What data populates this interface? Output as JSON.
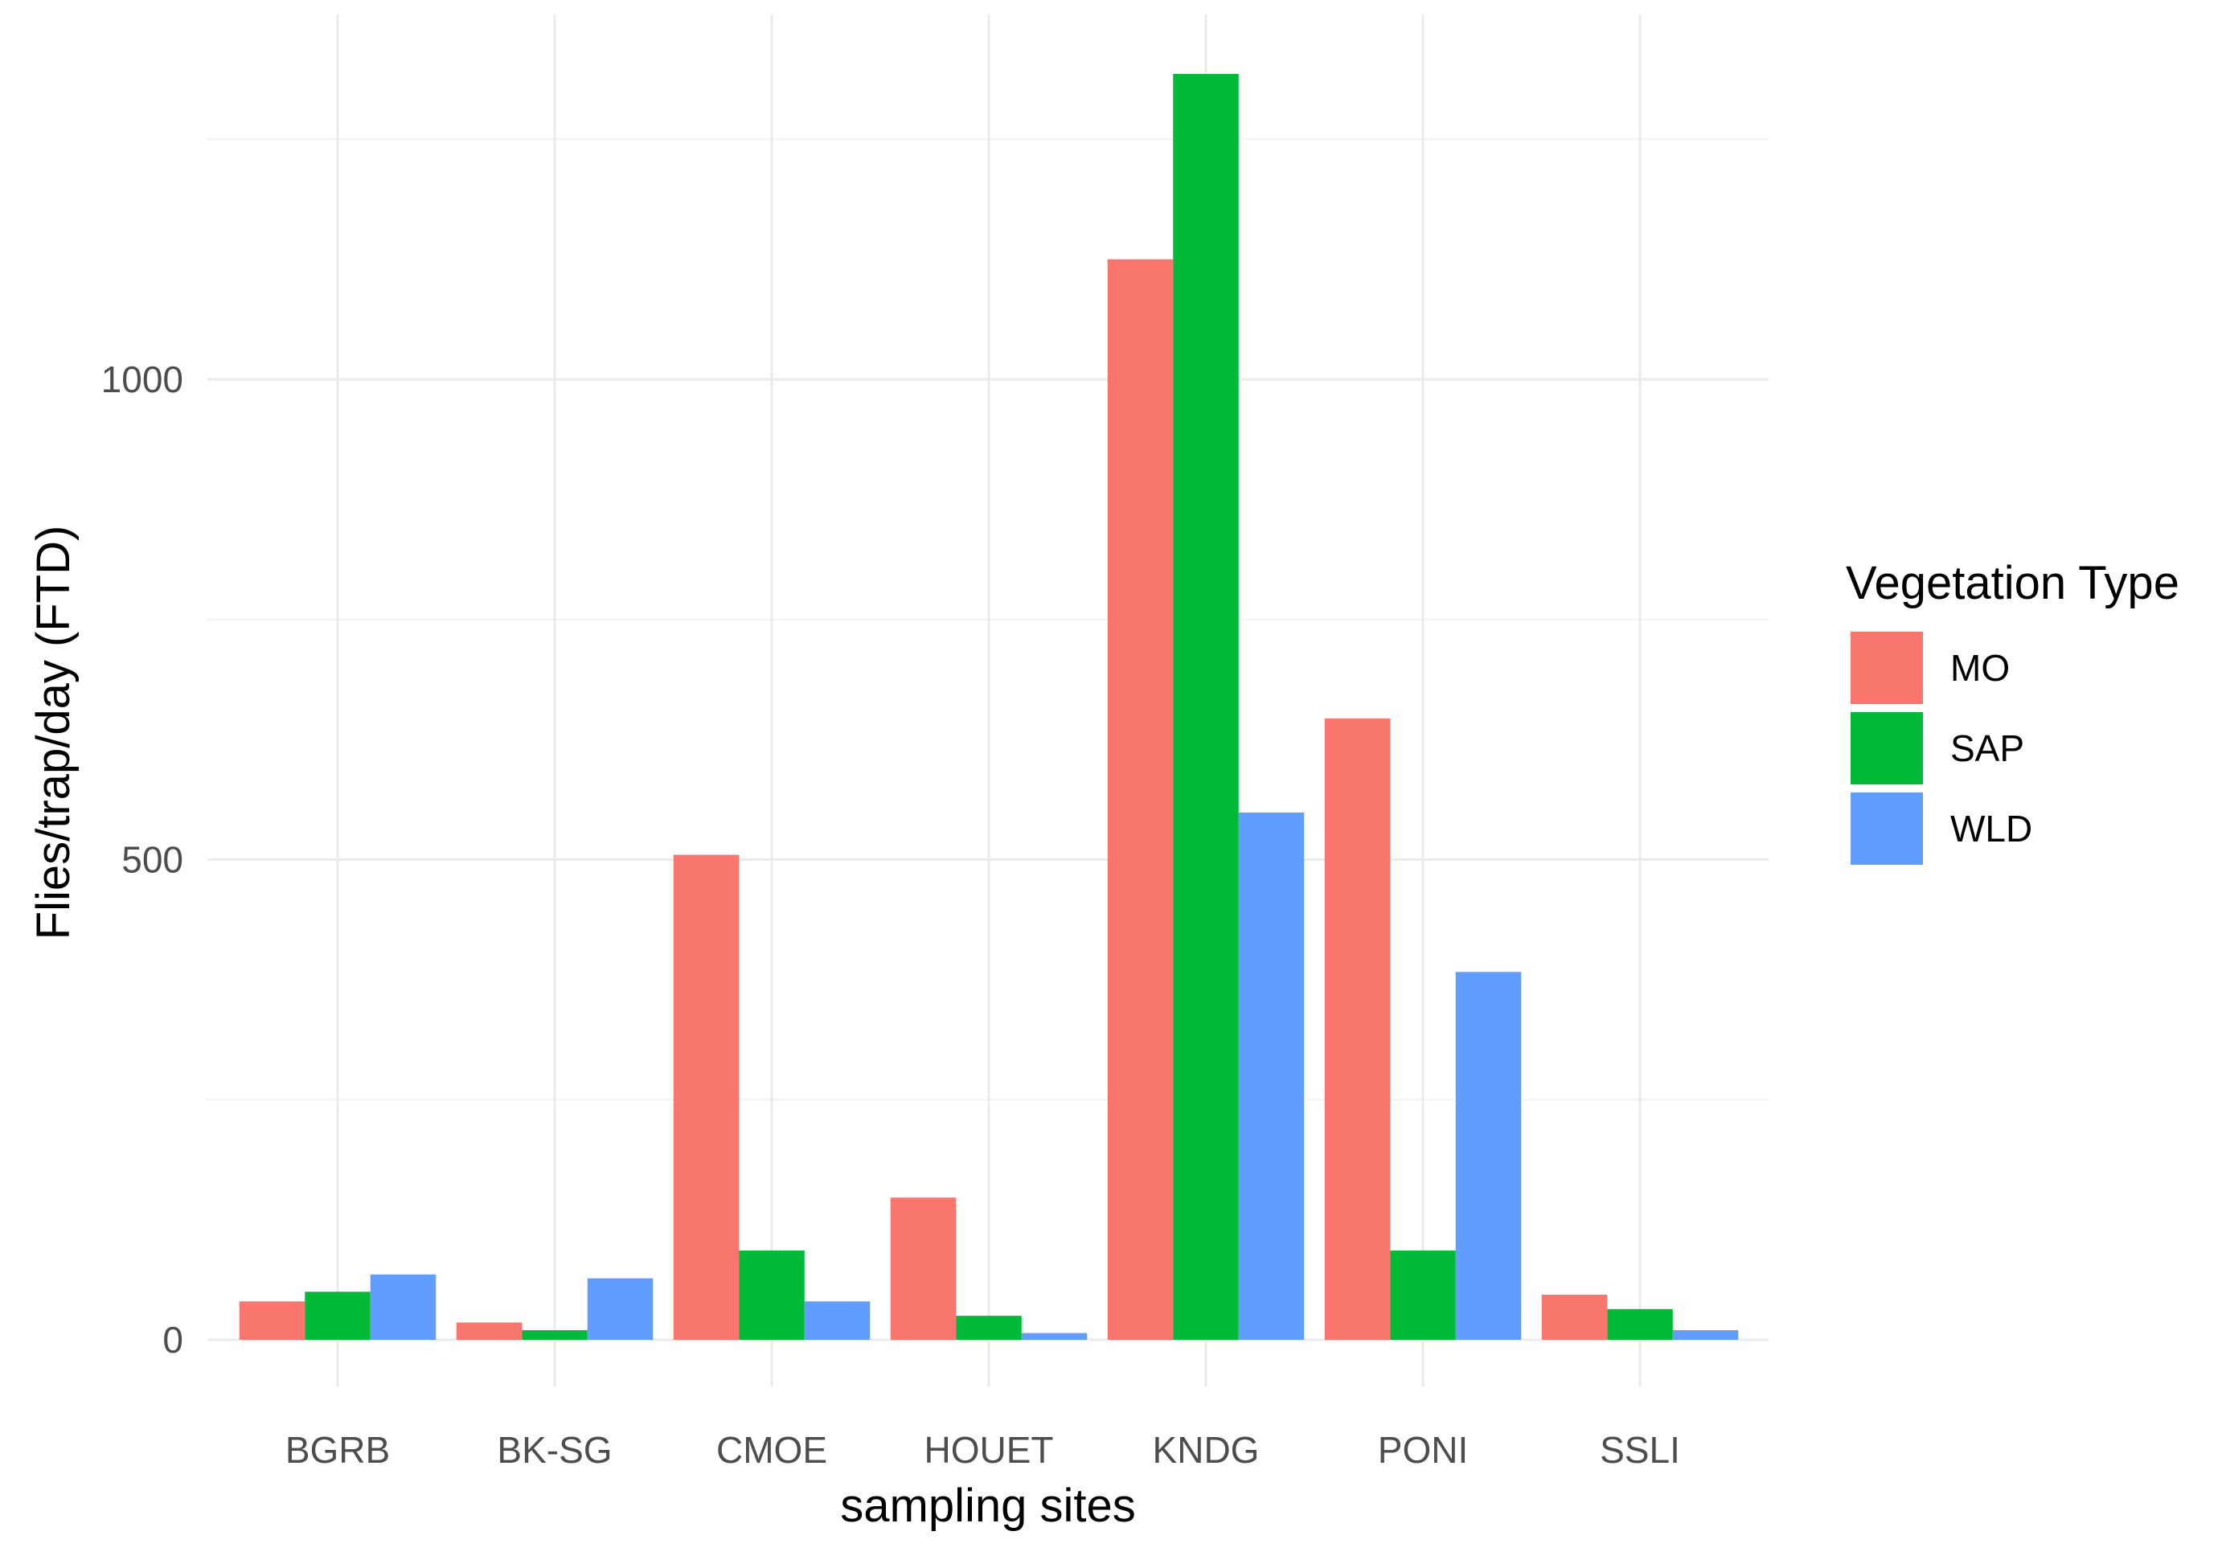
{
  "chart_data": {
    "type": "bar",
    "title": "",
    "xlabel": "sampling sites",
    "ylabel": "Flies/trap/day (FTD)",
    "categories": [
      "BGRB",
      "BK-SG",
      "CMOE",
      "HOUET",
      "KNDG",
      "PONI",
      "SSLI"
    ],
    "series": [
      {
        "name": "MO",
        "color": "#F8766D",
        "values": [
          40,
          18,
          505,
          148,
          1125,
          647,
          47
        ]
      },
      {
        "name": "SAP",
        "color": "#00BA38",
        "values": [
          50,
          10,
          93,
          25,
          1318,
          93,
          32
        ]
      },
      {
        "name": "WLD",
        "color": "#619CFF",
        "values": [
          68,
          64,
          40,
          7,
          549,
          383,
          10
        ]
      }
    ],
    "ylim": [
      -40,
      1390
    ],
    "yticks": [
      0,
      500,
      1000
    ],
    "yminor": [
      250,
      750,
      1250
    ],
    "grid": true,
    "legend": {
      "title": "Vegetation Type",
      "position": "right"
    }
  }
}
